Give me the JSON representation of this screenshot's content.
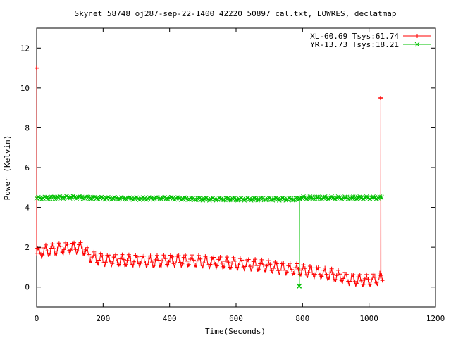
{
  "chart_data": {
    "type": "line",
    "title": "Skynet_58748_oj287-sep-22-1400_42220_50897_cal.txt, LOWRES, declatmap",
    "xlabel": "Time(Seconds)",
    "ylabel": "Power (Kelvin)",
    "xlim": [
      0,
      1200
    ],
    "ylim": [
      -1,
      13
    ],
    "xticks": [
      0,
      200,
      400,
      600,
      800,
      1000,
      1200
    ],
    "yticks": [
      0,
      2,
      4,
      6,
      8,
      10,
      12
    ],
    "grid": false,
    "legend_position": "top-right",
    "series": [
      {
        "name": "XL-60.69 Tsys:61.74",
        "color": "#ff0000",
        "marker": "+",
        "trend": [
          [
            0,
            1.7
          ],
          [
            10,
            1.7
          ],
          [
            25,
            1.8
          ],
          [
            50,
            1.85
          ],
          [
            75,
            1.9
          ],
          [
            100,
            1.95
          ],
          [
            125,
            1.95
          ],
          [
            140,
            1.9
          ],
          [
            160,
            1.5
          ],
          [
            180,
            1.4
          ],
          [
            200,
            1.35
          ],
          [
            250,
            1.3
          ],
          [
            300,
            1.3
          ],
          [
            350,
            1.25
          ],
          [
            400,
            1.3
          ],
          [
            450,
            1.3
          ],
          [
            500,
            1.25
          ],
          [
            550,
            1.2
          ],
          [
            600,
            1.15
          ],
          [
            650,
            1.1
          ],
          [
            700,
            1.0
          ],
          [
            750,
            0.9
          ],
          [
            780,
            0.85
          ],
          [
            800,
            0.8
          ],
          [
            850,
            0.7
          ],
          [
            900,
            0.55
          ],
          [
            950,
            0.35
          ],
          [
            980,
            0.3
          ],
          [
            1000,
            0.3
          ],
          [
            1020,
            0.35
          ],
          [
            1040,
            0.45
          ]
        ],
        "amplitude": 0.25,
        "spikes": [
          {
            "x": 0,
            "y": 11.0
          },
          {
            "x": 1035,
            "y": 9.5
          }
        ]
      },
      {
        "name": "YR-13.73 Tsys:18.21",
        "color": "#00c000",
        "marker": "x",
        "trend": [
          [
            0,
            4.5
          ],
          [
            100,
            4.55
          ],
          [
            200,
            4.5
          ],
          [
            300,
            4.48
          ],
          [
            400,
            4.5
          ],
          [
            500,
            4.45
          ],
          [
            600,
            4.45
          ],
          [
            700,
            4.45
          ],
          [
            785,
            4.45
          ],
          [
            800,
            4.45
          ],
          [
            900,
            4.45
          ],
          [
            1000,
            4.45
          ],
          [
            1040,
            4.45
          ]
        ],
        "amplitude": 0.05,
        "dips": [
          {
            "x": 790,
            "y": 0.05
          }
        ]
      }
    ]
  }
}
